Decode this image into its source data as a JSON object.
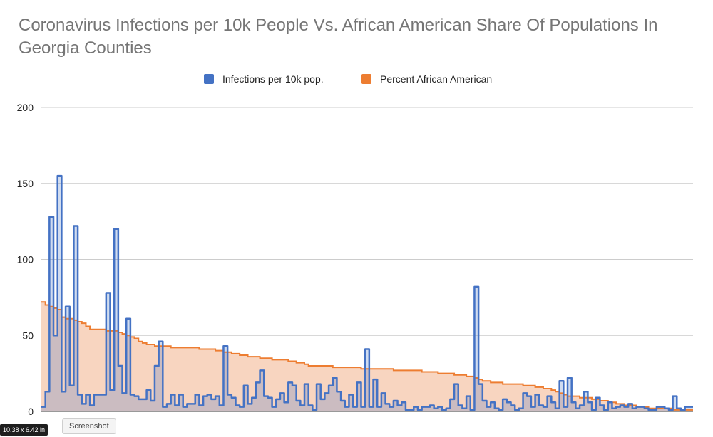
{
  "chart_data": {
    "type": "area",
    "title": "Coronavirus Infections per 10k People Vs. African American Share Of Populations In Georgia Counties",
    "xlabel": "",
    "ylabel": "",
    "ylim": [
      0,
      200
    ],
    "yticks": [
      0,
      50,
      100,
      150,
      200
    ],
    "grid": true,
    "legend_position": "top-center",
    "series": [
      {
        "name": "Infections per 10k pop.",
        "color": "#4472c4",
        "values": [
          3,
          13,
          128,
          50,
          155,
          13,
          69,
          17,
          122,
          11,
          5,
          11,
          4,
          11,
          11,
          11,
          78,
          14,
          120,
          30,
          12,
          61,
          11,
          10,
          8,
          8,
          14,
          7,
          30,
          46,
          3,
          5,
          11,
          4,
          11,
          3,
          5,
          5,
          11,
          4,
          10,
          11,
          8,
          10,
          4,
          43,
          11,
          9,
          4,
          3,
          17,
          5,
          9,
          19,
          27,
          10,
          9,
          3,
          8,
          12,
          6,
          19,
          17,
          7,
          4,
          18,
          4,
          1,
          18,
          8,
          12,
          17,
          22,
          13,
          7,
          3,
          11,
          3,
          19,
          3,
          41,
          3,
          21,
          3,
          12,
          5,
          3,
          7,
          4,
          6,
          1,
          1,
          3,
          1,
          3,
          3,
          4,
          2,
          3,
          1,
          2,
          8,
          18,
          4,
          2,
          10,
          1,
          82,
          18,
          7,
          3,
          6,
          2,
          1,
          8,
          6,
          4,
          1,
          2,
          12,
          10,
          3,
          11,
          4,
          3,
          10,
          6,
          2,
          20,
          3,
          22,
          6,
          2,
          4,
          13,
          6,
          1,
          9,
          4,
          1,
          6,
          2,
          3,
          4,
          3,
          5,
          2,
          3,
          3,
          2,
          1,
          1,
          3,
          3,
          2,
          1,
          10,
          2,
          1,
          3,
          3
        ]
      },
      {
        "name": "Percent African American",
        "color": "#ed7d31",
        "fill": "#f8d5c0",
        "values": [
          72,
          70,
          69,
          68,
          67,
          62,
          61,
          61,
          60,
          59,
          58,
          56,
          54,
          54,
          54,
          54,
          53,
          53,
          53,
          52,
          51,
          50,
          49,
          48,
          46,
          45,
          44,
          44,
          43,
          43,
          43,
          43,
          42,
          42,
          42,
          42,
          42,
          42,
          42,
          41,
          41,
          41,
          41,
          40,
          40,
          39,
          39,
          38,
          38,
          37,
          37,
          36,
          36,
          36,
          35,
          35,
          35,
          34,
          34,
          34,
          34,
          33,
          33,
          32,
          32,
          31,
          30,
          30,
          30,
          30,
          30,
          30,
          29,
          29,
          29,
          29,
          29,
          29,
          29,
          28,
          28,
          28,
          28,
          28,
          28,
          28,
          28,
          27,
          27,
          27,
          27,
          27,
          27,
          27,
          26,
          26,
          26,
          26,
          25,
          25,
          25,
          25,
          24,
          24,
          24,
          23,
          23,
          22,
          21,
          20,
          20,
          19,
          19,
          19,
          18,
          18,
          18,
          18,
          18,
          17,
          17,
          17,
          16,
          16,
          15,
          15,
          14,
          13,
          12,
          11,
          10,
          10,
          10,
          9,
          9,
          9,
          8,
          8,
          7,
          7,
          6,
          6,
          5,
          5,
          4,
          4,
          4,
          3,
          3,
          3,
          2,
          2,
          2,
          2,
          2,
          2,
          1,
          1,
          1,
          1,
          1
        ]
      }
    ]
  },
  "footer": {
    "size_label": "10.38 x 6.42 in",
    "tooltip_label": "Screenshot"
  }
}
